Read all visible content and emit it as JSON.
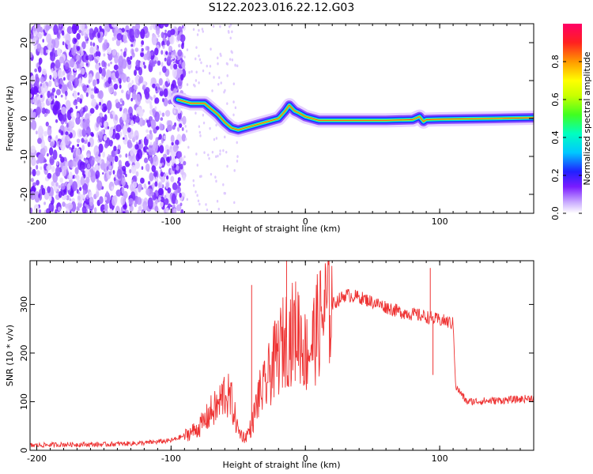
{
  "title": "S122.2023.016.22.12.G03",
  "chart_data": [
    {
      "type": "heatmap",
      "xlabel": "Height of straight line (km)",
      "ylabel": "Frequency (Hz)",
      "xlim": [
        -205,
        170
      ],
      "ylim": [
        -25,
        25
      ],
      "xticks": [
        -200,
        -100,
        0,
        100
      ],
      "yticks": [
        -20,
        -10,
        0,
        10,
        20
      ],
      "colorbar": {
        "label": "Normalized spectral amplitude",
        "range": [
          0,
          1
        ],
        "ticks": [
          0.0,
          0.2,
          0.4,
          0.6,
          0.8
        ]
      },
      "noise_region_x": [
        -205,
        -90
      ],
      "ridge": {
        "x": [
          -95,
          -85,
          -75,
          -65,
          -60,
          -55,
          -50,
          -45,
          -40,
          -35,
          -30,
          -25,
          -20,
          -15,
          -12,
          -8,
          -5,
          0,
          5,
          10,
          20,
          40,
          60,
          80,
          85,
          88,
          90,
          100,
          120,
          140,
          170
        ],
        "y": [
          5,
          4,
          4,
          1,
          -1,
          -2.5,
          -3,
          -2.5,
          -2,
          -1.5,
          -1,
          -0.5,
          0,
          2,
          3.5,
          2,
          1.5,
          0.5,
          0,
          -0.5,
          -0.5,
          -0.5,
          -0.5,
          -0.3,
          0.5,
          -0.8,
          -0.3,
          -0.2,
          -0.1,
          0,
          0.2
        ]
      }
    },
    {
      "type": "line",
      "xlabel": "Height of straight line (km)",
      "ylabel": "SNR (10 * v/v)",
      "xlim": [
        -205,
        170
      ],
      "ylim": [
        0,
        390
      ],
      "xticks": [
        -200,
        -100,
        0,
        100
      ],
      "yticks": [
        0,
        100,
        200,
        300
      ],
      "color": "#ee3333",
      "series": [
        {
          "x": [
            -205,
            -180,
            -150,
            -120,
            -100,
            -90,
            -80,
            -75,
            -70,
            -65,
            -60,
            -55,
            -50,
            -45,
            -40,
            -35,
            -30,
            -25,
            -20,
            -15,
            -10,
            -5,
            0,
            5,
            10,
            15,
            20,
            25,
            30,
            40,
            50,
            60,
            70,
            80,
            90,
            95,
            100,
            105,
            108,
            110,
            112,
            115,
            120,
            140,
            160,
            170
          ],
          "y": [
            10,
            12,
            12,
            15,
            20,
            30,
            45,
            60,
            80,
            90,
            120,
            100,
            40,
            25,
            50,
            110,
            130,
            170,
            200,
            230,
            240,
            250,
            200,
            220,
            260,
            290,
            300,
            310,
            320,
            315,
            305,
            295,
            285,
            280,
            275,
            270,
            268,
            265,
            262,
            260,
            130,
            120,
            100,
            102,
            105,
            108
          ]
        }
      ],
      "annotation_spikes": [
        {
          "x": -40,
          "y": 340
        },
        {
          "x": -14,
          "y": 390
        },
        {
          "x": 93,
          "y": 375
        },
        {
          "x": 95,
          "y": 155
        }
      ]
    }
  ]
}
